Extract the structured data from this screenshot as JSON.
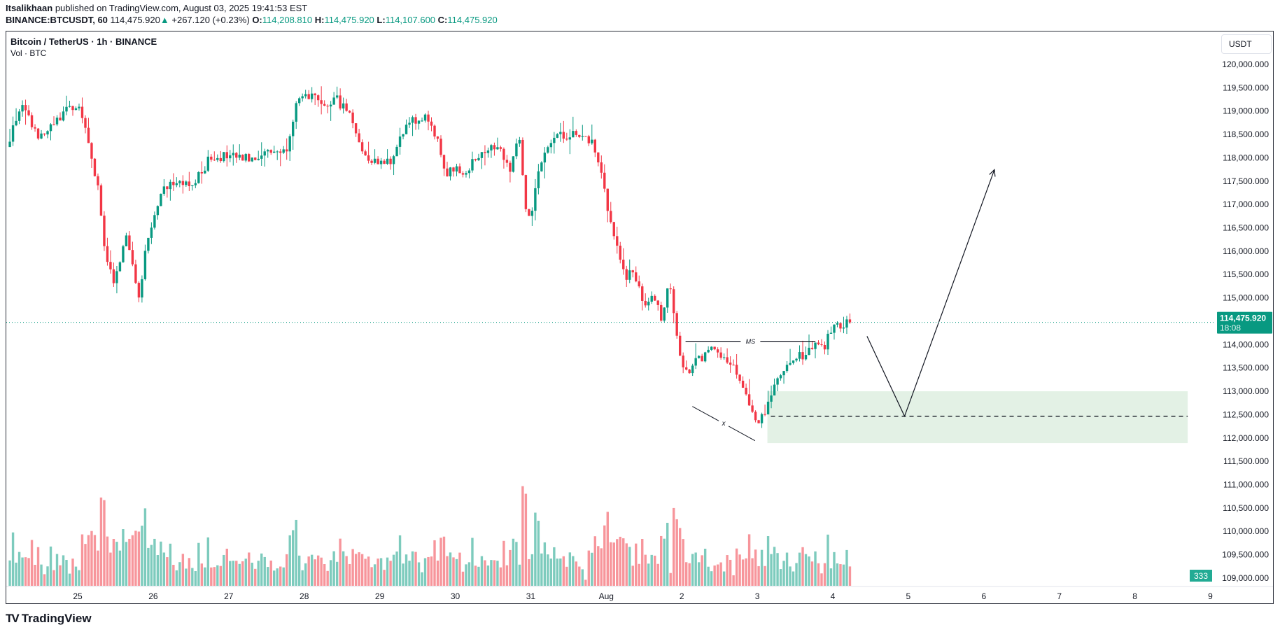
{
  "header": {
    "author": "Itsalikhaan",
    "published": "published on TradingView.com, August 03, 2025 19:41:53 EST",
    "symbol": "BINANCE:BTCUSDT, 60",
    "last": "114,475.920",
    "change": "+267.120 (+0.23%)",
    "o_label": "O:",
    "o": "114,208.810",
    "h_label": "H:",
    "h": "114,475.920",
    "l_label": "L:",
    "l": "114,107.600",
    "c_label": "C:",
    "c": "114,475.920"
  },
  "chart_title": "Bitcoin / TetherUS · 1h · BINANCE",
  "volume_label": "Vol · BTC",
  "currency_button": "USDT",
  "logo_text": "TradingView",
  "colors": {
    "up": "#089981",
    "down": "#f23645",
    "zone": "#e3f1e5"
  },
  "chart_data": {
    "type": "candlestick",
    "interval": "1h",
    "price_ticks": [
      "120,000.000",
      "119,500.000",
      "119,000.000",
      "118,500.000",
      "118,000.000",
      "117,500.000",
      "117,000.000",
      "116,500.000",
      "116,000.000",
      "115,500.000",
      "115,000.000",
      "114,000.000",
      "113,500.000",
      "113,000.000",
      "112,500.000",
      "112,000.000",
      "111,500.000",
      "111,000.000",
      "110,500.000",
      "110,000.000",
      "109,500.000",
      "109,000.000"
    ],
    "price_tick_values": [
      120000,
      119500,
      119000,
      118500,
      118000,
      117500,
      117000,
      116500,
      116000,
      115500,
      115000,
      114000,
      113500,
      113000,
      112500,
      112000,
      111500,
      111000,
      110500,
      110000,
      109500,
      109000
    ],
    "time_ticks": [
      "25",
      "26",
      "27",
      "28",
      "29",
      "30",
      "31",
      "Aug",
      "2",
      "3",
      "4",
      "5",
      "6",
      "7",
      "8",
      "9"
    ],
    "time_unit": "days since Jul 25 00:00",
    "close_path": [
      [
        -0.94,
        118230
      ],
      [
        -0.76,
        119108
      ],
      [
        -0.49,
        118409
      ],
      [
        -0.38,
        118584
      ],
      [
        -0.16,
        119021
      ],
      [
        0.0,
        119108
      ],
      [
        0.16,
        118235
      ],
      [
        0.29,
        117186
      ],
      [
        0.355,
        115962
      ],
      [
        0.485,
        115263
      ],
      [
        0.647,
        116312
      ],
      [
        0.809,
        115088
      ],
      [
        0.917,
        116137
      ],
      [
        1.079,
        117186
      ],
      [
        1.241,
        117535
      ],
      [
        1.512,
        117360
      ],
      [
        1.782,
        118060
      ],
      [
        2.214,
        117972
      ],
      [
        2.539,
        118147
      ],
      [
        2.755,
        118147
      ],
      [
        2.885,
        119108
      ],
      [
        3.079,
        119371
      ],
      [
        3.241,
        119021
      ],
      [
        3.404,
        119283
      ],
      [
        3.62,
        118934
      ],
      [
        3.782,
        118060
      ],
      [
        3.998,
        117885
      ],
      [
        4.16,
        117972
      ],
      [
        4.377,
        118759
      ],
      [
        4.593,
        118846
      ],
      [
        4.755,
        118409
      ],
      [
        4.863,
        117710
      ],
      [
        5.133,
        117710
      ],
      [
        5.35,
        118147
      ],
      [
        5.566,
        118322
      ],
      [
        5.728,
        117710
      ],
      [
        5.836,
        118584
      ],
      [
        5.944,
        116836
      ],
      [
        5.998,
        116661
      ],
      [
        6.106,
        117710
      ],
      [
        6.215,
        118322
      ],
      [
        6.431,
        118497
      ],
      [
        6.647,
        118497
      ],
      [
        6.809,
        118322
      ],
      [
        6.917,
        117885
      ],
      [
        7.025,
        116836
      ],
      [
        7.134,
        116137
      ],
      [
        7.242,
        115437
      ],
      [
        7.35,
        115612
      ],
      [
        7.512,
        114739
      ],
      [
        7.62,
        115088
      ],
      [
        7.728,
        114563
      ],
      [
        7.836,
        115437
      ],
      [
        7.944,
        114039
      ],
      [
        8.031,
        113340
      ],
      [
        8.16,
        113602
      ],
      [
        8.377,
        113864
      ],
      [
        8.593,
        113689
      ],
      [
        8.755,
        113340
      ],
      [
        8.863,
        112816
      ],
      [
        8.993,
        112204
      ],
      [
        9.134,
        112728
      ],
      [
        9.296,
        113340
      ],
      [
        9.512,
        113689
      ],
      [
        9.674,
        113864
      ],
      [
        9.782,
        114039
      ],
      [
        9.89,
        113952
      ],
      [
        9.999,
        114389
      ],
      [
        10.215,
        114475.92
      ]
    ],
    "last_price": 114475.92,
    "last_price_label": "114,475.920",
    "countdown": "18:08",
    "last_volume": "333",
    "drawings": {
      "ms_line": {
        "label": "MS",
        "price": 114070,
        "from": 8.05,
        "to": 9.77
      },
      "x_line": {
        "label": "x",
        "from": [
          8.14,
          112676
        ],
        "to": [
          8.97,
          111942
        ]
      },
      "demand_zone": {
        "top": 113000,
        "bottom": 111890,
        "from": 9.134,
        "to": 14.7
      },
      "zone_mid_line": {
        "price": 112466,
        "from": 9.18,
        "to": 14.7
      },
      "projection": [
        [
          10.453,
          114179
        ],
        [
          10.95,
          112466
        ],
        [
          12.14,
          117745
        ]
      ]
    }
  }
}
